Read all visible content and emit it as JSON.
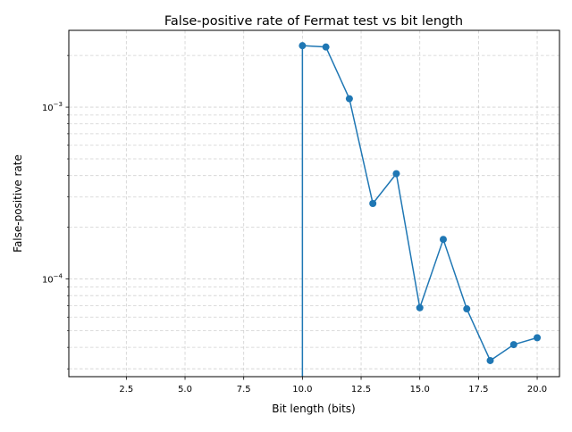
{
  "chart_data": {
    "type": "line",
    "title": "False-positive rate of Fermat test vs bit length",
    "xlabel": "Bit length (bits)",
    "ylabel": "False-positive rate",
    "y_scale": "log",
    "xlim": [
      0.05,
      20.95
    ],
    "ylim": [
      2.7e-05,
      0.0028
    ],
    "grid": true,
    "grid_style": "dashed",
    "series_color": "#1f77b4",
    "x_ticks": [
      {
        "value": 2.5,
        "label": "2.5"
      },
      {
        "value": 5.0,
        "label": "5.0"
      },
      {
        "value": 7.5,
        "label": "7.5"
      },
      {
        "value": 10.0,
        "label": "10.0"
      },
      {
        "value": 12.5,
        "label": "12.5"
      },
      {
        "value": 15.0,
        "label": "15.0"
      },
      {
        "value": 17.5,
        "label": "17.5"
      },
      {
        "value": 20.0,
        "label": "20.0"
      }
    ],
    "y_major_ticks": [
      {
        "value": 0.0001,
        "base": "10",
        "exp": "−4"
      },
      {
        "value": 0.001,
        "base": "10",
        "exp": "−3"
      }
    ],
    "y_minor_ticks": [
      3e-05,
      4e-05,
      5e-05,
      6e-05,
      7e-05,
      8e-05,
      9e-05,
      0.0002,
      0.0003,
      0.0004,
      0.0005,
      0.0006,
      0.0007,
      0.0008,
      0.0009,
      0.002
    ],
    "x": [
      1,
      2,
      3,
      4,
      5,
      6,
      7,
      8,
      9,
      10,
      11,
      12,
      13,
      14,
      15,
      16,
      17,
      18,
      19,
      20
    ],
    "values": [
      0,
      0,
      0,
      0,
      0,
      0,
      0,
      0,
      0,
      0.00228,
      0.00224,
      0.00112,
      0.000275,
      0.00041,
      6.8e-05,
      0.00017,
      6.7e-05,
      3.35e-05,
      4.15e-05,
      4.55e-05
    ]
  }
}
